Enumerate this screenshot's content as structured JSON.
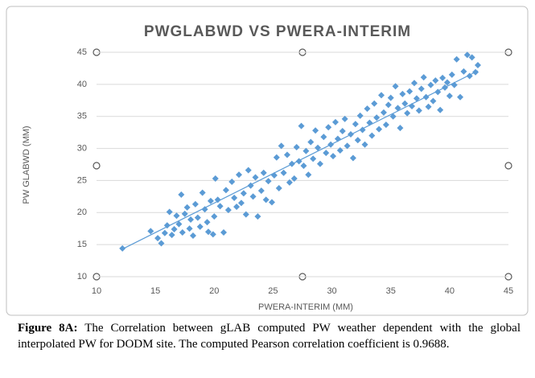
{
  "chart_data": {
    "type": "scatter",
    "title": "PWGLABWD VS PWERA-INTERIM",
    "xlabel": "PWERA-INTERIM (MM)",
    "ylabel": "PW GLABWD (MM)",
    "xlim": [
      10,
      45
    ],
    "ylim": [
      10,
      45
    ],
    "xticks": [
      10,
      15,
      20,
      25,
      30,
      35,
      40,
      45
    ],
    "yticks": [
      10,
      15,
      20,
      25,
      30,
      35,
      40,
      45
    ],
    "grid": true,
    "color": "#5b9bd5",
    "x": [
      12.2,
      14.6,
      15.2,
      15.5,
      15.8,
      16.0,
      16.2,
      16.4,
      16.6,
      16.8,
      17.0,
      17.2,
      17.3,
      17.5,
      17.7,
      17.9,
      18.0,
      18.2,
      18.4,
      18.6,
      18.8,
      19.0,
      19.2,
      19.4,
      19.5,
      19.7,
      19.9,
      20.0,
      20.1,
      20.3,
      20.5,
      20.8,
      21.0,
      21.2,
      21.5,
      21.7,
      21.9,
      22.1,
      22.3,
      22.5,
      22.7,
      22.9,
      23.1,
      23.3,
      23.5,
      23.7,
      24.0,
      24.2,
      24.4,
      24.6,
      24.9,
      25.1,
      25.3,
      25.5,
      25.7,
      25.9,
      26.2,
      26.4,
      26.6,
      26.8,
      27.0,
      27.2,
      27.4,
      27.6,
      27.8,
      28.0,
      28.2,
      28.4,
      28.6,
      28.8,
      29.0,
      29.3,
      29.5,
      29.7,
      29.9,
      30.1,
      30.3,
      30.5,
      30.7,
      30.9,
      31.1,
      31.3,
      31.6,
      31.8,
      32.0,
      32.2,
      32.4,
      32.6,
      32.8,
      33.0,
      33.2,
      33.4,
      33.6,
      33.8,
      34.0,
      34.2,
      34.4,
      34.6,
      34.8,
      35.0,
      35.2,
      35.4,
      35.6,
      35.8,
      36.0,
      36.2,
      36.4,
      36.6,
      36.8,
      37.0,
      37.2,
      37.4,
      37.6,
      37.8,
      38.0,
      38.2,
      38.4,
      38.6,
      38.8,
      39.0,
      39.2,
      39.4,
      39.6,
      39.8,
      40.0,
      40.2,
      40.4,
      40.6,
      40.9,
      41.2,
      41.5,
      41.7,
      41.9,
      42.2,
      42.4
    ],
    "y": [
      14.4,
      17.1,
      16.0,
      15.2,
      16.8,
      18.0,
      20.1,
      16.5,
      17.4,
      19.5,
      18.2,
      22.8,
      16.9,
      19.8,
      20.8,
      17.5,
      18.9,
      16.4,
      21.3,
      19.2,
      17.8,
      23.1,
      20.5,
      18.5,
      17.0,
      21.8,
      16.6,
      19.4,
      25.3,
      22.0,
      21.0,
      16.9,
      23.5,
      20.4,
      24.8,
      22.3,
      20.9,
      25.9,
      21.5,
      23.0,
      19.7,
      26.6,
      24.2,
      22.5,
      25.5,
      19.4,
      23.4,
      26.2,
      22.0,
      24.9,
      21.6,
      25.8,
      28.6,
      23.8,
      30.4,
      26.2,
      29.0,
      24.7,
      27.6,
      25.3,
      30.2,
      28.0,
      33.5,
      27.3,
      29.6,
      25.9,
      31.0,
      28.4,
      32.8,
      30.1,
      27.6,
      31.8,
      29.3,
      33.3,
      30.6,
      28.8,
      34.1,
      31.5,
      29.7,
      32.7,
      34.6,
      30.4,
      32.2,
      28.5,
      33.8,
      31.3,
      35.1,
      32.9,
      30.6,
      36.2,
      34.0,
      32.0,
      37.0,
      34.8,
      33.0,
      38.3,
      35.6,
      33.7,
      36.8,
      37.9,
      35.0,
      39.7,
      36.3,
      33.2,
      38.5,
      37.0,
      35.5,
      38.9,
      36.6,
      40.2,
      37.8,
      35.9,
      39.3,
      41.1,
      38.0,
      36.5,
      39.9,
      37.4,
      40.6,
      38.8,
      36.0,
      41.0,
      39.5,
      40.3,
      38.2,
      41.5,
      39.9,
      43.9,
      38.0,
      42.0,
      44.6,
      41.3,
      44.2,
      41.9,
      43.0
    ],
    "trendline": {
      "x": [
        12.2,
        42.4
      ],
      "y": [
        14.3,
        42.1
      ]
    }
  },
  "caption": {
    "label": "Figure 8A:",
    "text": "The Correlation between gLAB computed PW weather dependent with the global interpolated PW for DODM site. The computed Pearson correlation coefficient is 0.9688."
  }
}
